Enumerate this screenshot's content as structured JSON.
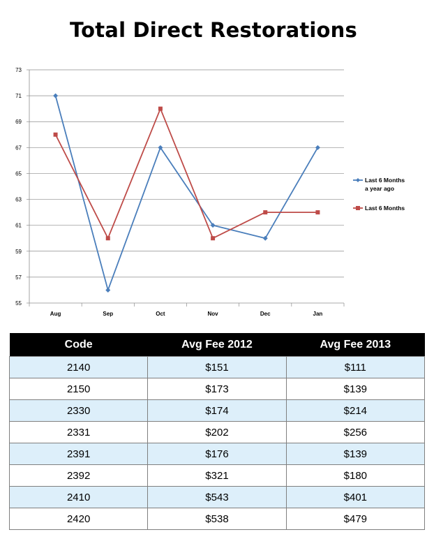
{
  "title": "Total Direct Restorations",
  "chart_data": {
    "type": "line",
    "categories": [
      "Aug",
      "Sep",
      "Oct",
      "Nov",
      "Dec",
      "Jan"
    ],
    "ylim": [
      55,
      73
    ],
    "yticks": [
      55,
      57,
      59,
      61,
      63,
      65,
      67,
      69,
      71,
      73
    ],
    "grid": true,
    "legend": "right",
    "series": [
      {
        "name": "Last 6 Months a year ago",
        "name_lines": [
          "Last 6 Months",
          "a year ago"
        ],
        "values": [
          71,
          56,
          67,
          61,
          60,
          67
        ],
        "color": "#4a7ebb",
        "marker": "diamond"
      },
      {
        "name": "Last 6 Months",
        "name_lines": [
          "Last 6 Months"
        ],
        "values": [
          68,
          60,
          70,
          60,
          62,
          62
        ],
        "color": "#be4b48",
        "marker": "square"
      }
    ]
  },
  "table": {
    "headers": [
      "Code",
      "Avg Fee 2012",
      "Avg Fee 2013"
    ],
    "rows": [
      [
        "2140",
        "$151",
        "$111"
      ],
      [
        "2150",
        "$173",
        "$139"
      ],
      [
        "2330",
        "$174",
        "$214"
      ],
      [
        "2331",
        "$202",
        "$256"
      ],
      [
        "2391",
        "$176",
        "$139"
      ],
      [
        "2392",
        "$321",
        "$180"
      ],
      [
        "2410",
        "$543",
        "$401"
      ],
      [
        "2420",
        "$538",
        "$479"
      ]
    ]
  }
}
